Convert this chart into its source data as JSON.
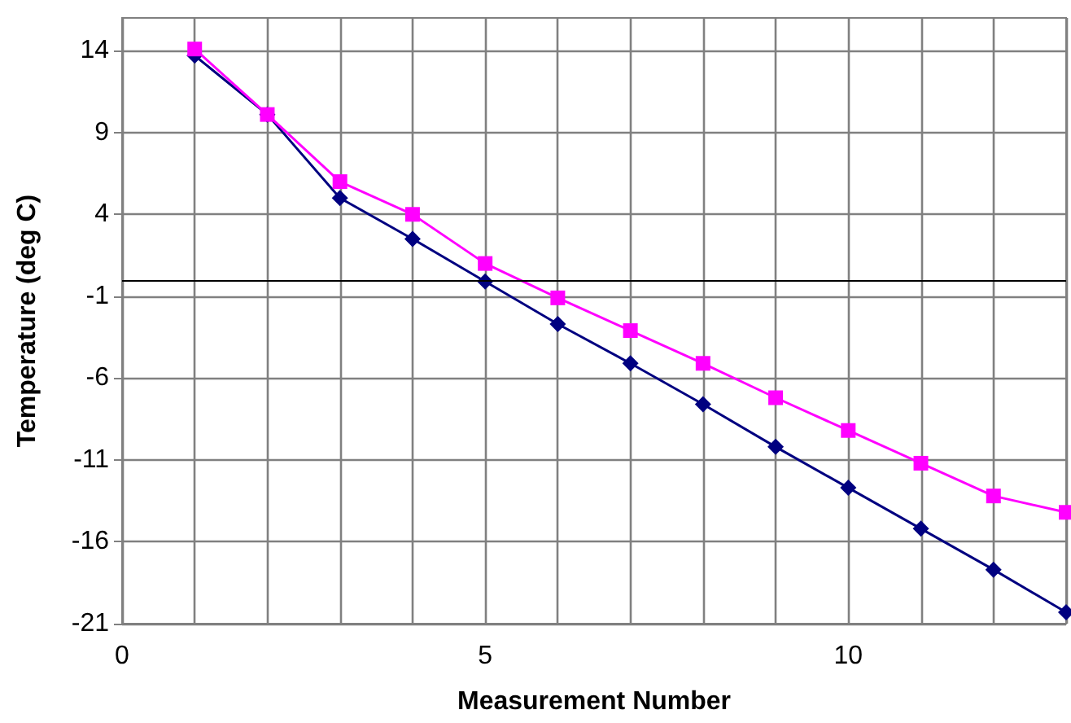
{
  "chart_data": {
    "type": "line",
    "xlabel": "Measurement Number",
    "ylabel": "Temperature (deg C)",
    "x": [
      1,
      2,
      3,
      4,
      5,
      6,
      7,
      8,
      9,
      10,
      11,
      12,
      13
    ],
    "series": [
      {
        "color": "#000080",
        "marker": "diamond",
        "values": [
          13.7,
          10.1,
          5,
          2.5,
          -0.1,
          -2.7,
          -5.1,
          -7.6,
          -10.2,
          -12.7,
          -15.2,
          -17.7,
          -20.3
        ]
      },
      {
        "color": "#ff00ff",
        "marker": "square",
        "values": [
          14.1,
          10.1,
          6,
          4,
          1,
          -1.1,
          -3.1,
          -5.1,
          -7.2,
          -9.2,
          -11.2,
          -13.2,
          -14.2
        ]
      }
    ],
    "xlim": [
      0,
      13
    ],
    "xticks": [
      0,
      {
        "value": 1,
        "label": null
      },
      {
        "value": 2,
        "label": null
      },
      {
        "value": 3,
        "label": null
      },
      {
        "value": 4,
        "label": null
      },
      5,
      {
        "value": 6,
        "label": null
      },
      {
        "value": 7,
        "label": null
      },
      {
        "value": 8,
        "label": null
      },
      {
        "value": 9,
        "label": null
      },
      10,
      {
        "value": 11,
        "label": null
      },
      {
        "value": 12,
        "label": null
      },
      {
        "value": 13,
        "label": null
      }
    ],
    "ylim": [
      -21,
      16
    ],
    "yticks": [
      -21,
      -16,
      -11,
      -6,
      -1,
      4,
      9,
      14
    ],
    "ref_lines": [
      {
        "axis": "y",
        "value": 0,
        "color": "#000000"
      }
    ],
    "grid": true,
    "line_style": "solid"
  }
}
